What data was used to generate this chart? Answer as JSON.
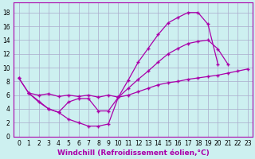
{
  "background_color": "#cdf0f0",
  "grid_color": "#aaaacc",
  "line_color": "#aa00aa",
  "marker": "+",
  "xlabel": "Windchill (Refroidissement éolien,°C)",
  "xlabel_fontsize": 6.5,
  "tick_fontsize": 5.5,
  "xlim": [
    -0.5,
    23.5
  ],
  "ylim": [
    0,
    19.5
  ],
  "xticks": [
    0,
    1,
    2,
    3,
    4,
    5,
    6,
    7,
    8,
    9,
    10,
    11,
    12,
    13,
    14,
    15,
    16,
    17,
    18,
    19,
    20,
    21,
    22,
    23
  ],
  "yticks": [
    0,
    2,
    4,
    6,
    8,
    10,
    12,
    14,
    16,
    18
  ],
  "line1_x": [
    0,
    1,
    2,
    3,
    4,
    5,
    6,
    7,
    8,
    9,
    10,
    11,
    12,
    13,
    14,
    15,
    16,
    17,
    18,
    19,
    20
  ],
  "line1_y": [
    8.5,
    6.3,
    5.0,
    4.0,
    3.5,
    2.5,
    2.0,
    1.5,
    1.5,
    1.8,
    5.7,
    8.2,
    10.8,
    12.8,
    14.8,
    16.5,
    17.3,
    18.0,
    18.0,
    16.3,
    10.5
  ],
  "line2_x": [
    0,
    1,
    2,
    3,
    4,
    5,
    6,
    7,
    8,
    9,
    10,
    11,
    12,
    13,
    14,
    15,
    16,
    17,
    18,
    19,
    20,
    21
  ],
  "line2_y": [
    8.5,
    6.3,
    6.0,
    6.2,
    5.8,
    6.0,
    5.8,
    6.0,
    5.7,
    6.0,
    5.7,
    7.0,
    8.3,
    9.5,
    10.8,
    12.0,
    12.8,
    13.5,
    13.8,
    14.0,
    12.7,
    10.5
  ],
  "line3_x": [
    1,
    3,
    4,
    5,
    6,
    7,
    8,
    9,
    10,
    11,
    12,
    13,
    14,
    15,
    16,
    17,
    18,
    19,
    20,
    21,
    22,
    23
  ],
  "line3_y": [
    6.3,
    4.0,
    3.5,
    5.0,
    5.5,
    5.5,
    3.7,
    3.7,
    5.7,
    6.0,
    6.5,
    7.0,
    7.5,
    7.8,
    8.0,
    8.3,
    8.5,
    8.7,
    8.9,
    9.2,
    9.5,
    9.8
  ]
}
